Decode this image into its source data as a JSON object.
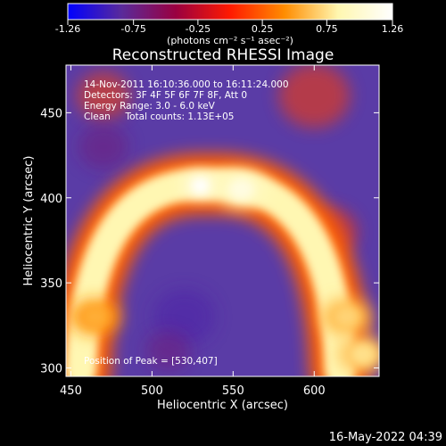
{
  "chart_data": {
    "type": "heatmap",
    "title": "Reconstructed RHESSI Image",
    "xlabel": "Heliocentric X (arcsec)",
    "ylabel": "Heliocentric Y (arcsec)",
    "xlim": [
      447,
      640
    ],
    "ylim": [
      295,
      478
    ],
    "x_ticks": [
      450,
      500,
      550,
      600
    ],
    "y_ticks": [
      300,
      350,
      400,
      450
    ],
    "colorbar": {
      "min": -1.26,
      "max": 1.26,
      "tick_values": [
        -1.26,
        -0.75,
        -0.25,
        0.25,
        0.75,
        1.26
      ],
      "tick_labels": [
        "-1.26",
        "-0.75",
        "-0.25",
        "0.25",
        "0.75",
        "1.26"
      ],
      "unit_label": "(photons cm⁻² s⁻¹ asec⁻²)",
      "colors": [
        "#0000ff",
        "#5a2a9a",
        "#9a0040",
        "#ff1a00",
        "#ff8c00",
        "#fff7b0",
        "#ffffff"
      ]
    },
    "background_color": "#5a3ca6",
    "annotations": [
      "14-Nov-2011 16:10:36.000 to 16:11:24.000",
      "Detectors: 3F 4F 5F 6F 7F 8F, Att 0",
      "Energy Range: 3.0 - 6.0 keV",
      "Clean     Total counts: 1.13E+05"
    ],
    "peak_label": "Position of Peak = [530,407]",
    "peak_position": [
      530,
      407
    ],
    "source_features": [
      {
        "kind": "arc",
        "center_x": 536,
        "center_y": 330,
        "radius_x": 80,
        "radius_y": 78,
        "width": 22,
        "peak_value": 0.85
      },
      {
        "kind": "peak",
        "x": 530,
        "y": 407,
        "value": 1.26
      },
      {
        "kind": "blob",
        "x": 555,
        "y": 405,
        "value": 1.1
      },
      {
        "kind": "blob",
        "x": 620,
        "y": 330,
        "value": 0.7
      },
      {
        "kind": "blob",
        "x": 630,
        "y": 308,
        "value": 0.75
      },
      {
        "kind": "blob",
        "x": 465,
        "y": 330,
        "value": 0.55
      }
    ]
  },
  "timestamp": "16-May-2022 04:39"
}
